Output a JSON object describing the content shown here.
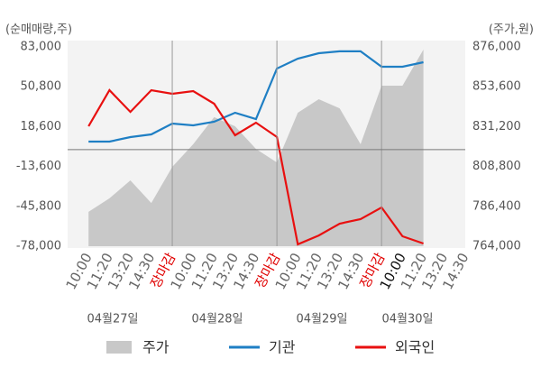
{
  "chart_data": {
    "type": "line",
    "y_axis_label": "(순매매량,주)",
    "y2_axis_label": "(주가,원)",
    "categories": [
      "10:00",
      "11:20",
      "13:20",
      "14:30",
      "장마감",
      "10:00",
      "11:20",
      "13:20",
      "14:30",
      "장마감",
      "10:00",
      "11:20",
      "13:20",
      "14:30",
      "장마감",
      "10:00",
      "11:20",
      "13:20",
      "14:30"
    ],
    "category_colors": [
      "#666",
      "#666",
      "#666",
      "#666",
      "#e00000",
      "#666",
      "#666",
      "#666",
      "#666",
      "#e00000",
      "#666",
      "#666",
      "#666",
      "#666",
      "#e00000",
      "#111",
      "#666",
      "#666",
      "#666"
    ],
    "day_labels": [
      "04월27일",
      "04월28일",
      "04월29일",
      "04월30일"
    ],
    "series": [
      {
        "name": "주가",
        "type": "area",
        "axis": "y2",
        "color": "#c8c8c8",
        "values": [
          783300,
          790900,
          801000,
          788300,
          808600,
          821300,
          836500,
          831400,
          818700,
          811100,
          839000,
          846600,
          841500,
          821300,
          854200,
          854200,
          874500,
          null,
          null
        ]
      },
      {
        "name": "기관",
        "type": "line",
        "color": "#1f7fc4",
        "values": [
          6500,
          6500,
          10150,
          12300,
          21100,
          19600,
          22500,
          29800,
          24700,
          65500,
          73500,
          77900,
          79400,
          79400,
          67000,
          67000,
          70600,
          null,
          null
        ]
      },
      {
        "name": "외국인",
        "type": "line",
        "color": "#e81010",
        "values": [
          18900,
          48000,
          30500,
          48000,
          45100,
          47300,
          37100,
          11600,
          21800,
          10200,
          -76500,
          -69300,
          -59800,
          -56100,
          -46700,
          -70000,
          -75800,
          null,
          null
        ]
      }
    ],
    "ylim": [
      -78000,
      83000
    ],
    "yticks": [
      {
        "value": -78000,
        "label": "-78,000"
      },
      {
        "value": -45800,
        "label": "-45,800"
      },
      {
        "value": -13600,
        "label": "-13,600"
      },
      {
        "value": 18600,
        "label": "18,600"
      },
      {
        "value": 50800,
        "label": "50,800"
      },
      {
        "value": 83000,
        "label": "83,000"
      }
    ],
    "y2lim": [
      764000,
      876000
    ],
    "y2ticks": [
      {
        "value": 764000,
        "label": "764,000"
      },
      {
        "value": 786400,
        "label": "786,400"
      },
      {
        "value": 808800,
        "label": "808,800"
      },
      {
        "value": 831200,
        "label": "831,200"
      },
      {
        "value": 853600,
        "label": "853,600"
      },
      {
        "value": 876000,
        "label": "876,000"
      }
    ],
    "zero_line": true
  }
}
